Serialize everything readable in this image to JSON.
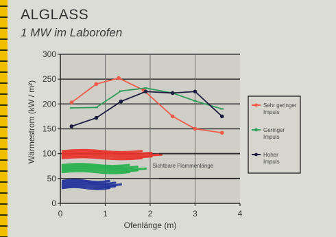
{
  "header": {
    "title": "ALGLASS",
    "subtitle": "1 MW im Laborofen"
  },
  "colors": {
    "red": "#f05a48",
    "green": "#2f9e5a",
    "black": "#1c1c40",
    "blue": "#2a3a9a",
    "flame_red": "#e8322a",
    "flame_green": "#22b04a",
    "flame_blue": "#1f2f9a"
  },
  "chart_data": {
    "type": "line",
    "xlabel": "Ofenlänge (m)",
    "ylabel": "Wärmestrom (kW / m²)",
    "xlim": [
      0,
      4
    ],
    "ylim": [
      0,
      300
    ],
    "xticks": [
      "0",
      "1",
      "2",
      "3",
      "4"
    ],
    "yticks": [
      "0",
      "50",
      "100",
      "150",
      "200",
      "250",
      "300"
    ],
    "grid": "major",
    "legend_position": "right",
    "series": [
      {
        "name": "Sehr geringer Impuls",
        "color_key": "red",
        "x": [
          0.25,
          0.8,
          1.3,
          1.85,
          2.5,
          3.0,
          3.6
        ],
        "y": [
          203,
          240,
          252,
          228,
          175,
          150,
          142
        ]
      },
      {
        "name": "Geringer Impuls",
        "color_key": "green",
        "x": [
          0.25,
          0.8,
          1.35,
          1.9,
          2.5,
          3.0,
          3.6
        ],
        "y": [
          192,
          193,
          226,
          232,
          222,
          206,
          190
        ]
      },
      {
        "name": "Hoher Impuls",
        "color_key": "black",
        "x": [
          0.25,
          0.8,
          1.35,
          1.9,
          2.5,
          3.0,
          3.6
        ],
        "y": [
          155,
          172,
          205,
          225,
          222,
          225,
          175
        ]
      }
    ],
    "flame_annotation": "Sichtbare Flammenlänge",
    "flame_lengths_m": [
      {
        "color_key": "flame_red",
        "x_end": 2.25,
        "y": 98
      },
      {
        "color_key": "flame_green",
        "x_end": 1.9,
        "y": 70
      },
      {
        "color_key": "flame_blue",
        "x_end": 1.35,
        "y": 38
      }
    ]
  }
}
